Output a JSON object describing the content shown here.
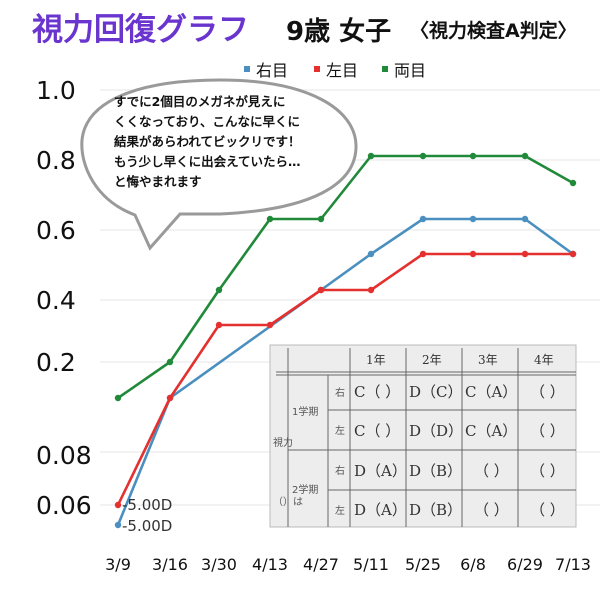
{
  "header": {
    "title": "視力回復グラフ",
    "subject": "9歳 女子",
    "note": "〈視力検査A判定〉"
  },
  "bubble": {
    "lines": [
      "すでに2個目のメガネが見えに",
      "くくなっており、こんなに早くに",
      "結果があらわれてビックリです！",
      "もう少し早くに出会えていたら…",
      "と悔やまれます"
    ]
  },
  "colors": {
    "right_eye": "#4a8fc0",
    "left_eye": "#e53030",
    "both_eyes": "#218a3a",
    "title": "#6a34cf"
  },
  "chart_data": {
    "type": "line",
    "title": "視力回復グラフ",
    "categories": [
      "3/9",
      "3/16",
      "3/30",
      "4/13",
      "4/27",
      "5/11",
      "5/25",
      "6/8",
      "6/29",
      "7/13"
    ],
    "y_ticks": [
      "0.06",
      "0.08",
      "0.2",
      "0.4",
      "0.6",
      "0.8",
      "1.0"
    ],
    "y_scale": "ordinal visual acuity scale (uneven spacing)",
    "grid": "horizontal",
    "legend_position": "top-right",
    "series": [
      {
        "name": "右目",
        "color": "#4a8fc0",
        "values": [
          0.05,
          0.1,
          null,
          null,
          0.4,
          0.5,
          0.6,
          0.6,
          0.6,
          0.5
        ]
      },
      {
        "name": "左目",
        "color": "#e53030",
        "values": [
          0.06,
          0.1,
          0.3,
          0.3,
          0.4,
          0.4,
          0.5,
          0.5,
          0.5,
          0.5
        ]
      },
      {
        "name": "両目",
        "color": "#218a3a",
        "values": [
          0.1,
          0.2,
          0.4,
          0.6,
          0.6,
          0.8,
          0.8,
          0.8,
          0.8,
          0.7
        ]
      }
    ],
    "annotations": [
      "-5.00D",
      "-5.00D"
    ]
  },
  "report_card": {
    "col_headers": [
      "1年",
      "2年",
      "3年",
      "4年"
    ],
    "side_label": "視力",
    "side_label_2": "（）は",
    "term_labels": [
      "1学期",
      "2学期"
    ],
    "rows": [
      {
        "eye": "右",
        "cells": [
          "C（ ）",
          "D（C）",
          "C（A）",
          "（ ）"
        ]
      },
      {
        "eye": "左",
        "cells": [
          "C（ ）",
          "D（D）",
          "C（A）",
          "（ ）"
        ]
      },
      {
        "eye": "右",
        "cells": [
          "D（A）",
          "D（B）",
          "（ ）",
          "（ ）"
        ]
      },
      {
        "eye": "左",
        "cells": [
          "D（A）",
          "D（B）",
          "（ ）",
          "（ ）"
        ]
      }
    ]
  }
}
